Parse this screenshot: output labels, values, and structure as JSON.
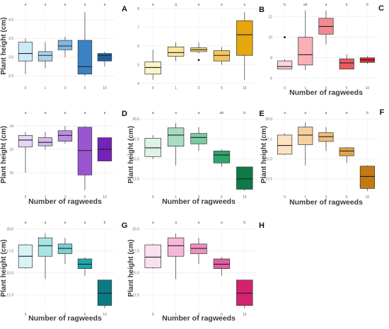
{
  "chart_data": [
    {
      "type": "box",
      "panel_label": "A",
      "xlabel": "",
      "ylabel": "Plant height (cm)",
      "categories": [
        "0",
        "1",
        "3",
        "5",
        "10"
      ],
      "y_ticks": [
        "2.5",
        "3.0",
        "3.5",
        "4.0"
      ],
      "ylim": [
        2.3,
        4.3
      ],
      "significance": [
        "a",
        "a",
        "a",
        "a",
        "a"
      ],
      "boxes": [
        {
          "min": 2.55,
          "q1": 2.9,
          "median": 3.1,
          "q3": 3.4,
          "max": 3.5,
          "color": "#cdeaf7"
        },
        {
          "min": 2.7,
          "q1": 2.9,
          "median": 3.05,
          "q3": 3.15,
          "max": 3.4,
          "color": "#a8d4ee"
        },
        {
          "min": 3.0,
          "q1": 3.2,
          "median": 3.3,
          "q3": 3.45,
          "max": 3.55,
          "color": "#7fb6e0"
        },
        {
          "min": 2.5,
          "q1": 2.55,
          "median": 2.75,
          "q3": 3.45,
          "max": 4.2,
          "color": "#3b82c4"
        },
        {
          "min": 2.75,
          "q1": 2.9,
          "median": 3.05,
          "q3": 3.1,
          "max": 3.15,
          "color": "#1d5f9e"
        }
      ],
      "outliers": []
    },
    {
      "type": "box",
      "panel_label": "B",
      "xlabel": "",
      "ylabel": "",
      "categories": [
        "0",
        "1",
        "3",
        "5",
        "10"
      ],
      "y_ticks": [
        "4",
        "5",
        "6",
        "7",
        "8"
      ],
      "ylim": [
        4.0,
        8.0
      ],
      "significance": [
        "a",
        "a",
        "a",
        "a",
        "a"
      ],
      "boxes": [
        {
          "min": 4.2,
          "q1": 4.5,
          "median": 4.85,
          "q3": 5.15,
          "max": 5.8,
          "color": "#fdf3c6"
        },
        {
          "min": 5.2,
          "q1": 5.45,
          "median": 5.65,
          "q3": 5.95,
          "max": 6.2,
          "color": "#fbe6a0"
        },
        {
          "min": 5.6,
          "q1": 5.7,
          "median": 5.8,
          "q3": 5.9,
          "max": 6.2,
          "color": "#f7d87c"
        },
        {
          "min": 5.0,
          "q1": 5.2,
          "median": 5.5,
          "q3": 5.75,
          "max": 5.95,
          "color": "#f3c55a"
        },
        {
          "min": 4.2,
          "q1": 5.5,
          "median": 6.6,
          "q3": 7.35,
          "max": 7.8,
          "color": "#e5a60f"
        }
      ],
      "outliers": [
        {
          "cat": 2,
          "value": 5.25
        }
      ]
    },
    {
      "type": "box",
      "panel_label": "C",
      "xlabel": "Number of ragweeds",
      "ylabel": "",
      "categories": [
        "0",
        "1",
        "3",
        "5",
        "10"
      ],
      "y_ticks": [
        "6",
        "8",
        "10",
        "12"
      ],
      "ylim": [
        5.5,
        12.8
      ],
      "significance": [
        "b",
        "ab",
        "a",
        "b",
        "b"
      ],
      "boxes": [
        {
          "min": 6.9,
          "q1": 6.9,
          "median": 7.15,
          "q3": 7.7,
          "max": 7.85,
          "color": "#fbd5d8"
        },
        {
          "min": 6.8,
          "q1": 7.3,
          "median": 8.3,
          "q3": 10.0,
          "max": 12.6,
          "color": "#f8b0b6"
        },
        {
          "min": 9.3,
          "q1": 10.3,
          "median": 11.05,
          "q3": 11.85,
          "max": 12.6,
          "color": "#f28a91"
        },
        {
          "min": 6.9,
          "q1": 6.9,
          "median": 7.5,
          "q3": 7.9,
          "max": 8.35,
          "color": "#ea5a62"
        },
        {
          "min": 7.4,
          "q1": 7.55,
          "median": 7.8,
          "q3": 8.0,
          "max": 8.15,
          "color": "#d62f38"
        }
      ],
      "outliers": [
        {
          "cat": 0,
          "value": 10.0
        }
      ]
    },
    {
      "type": "box",
      "panel_label": "D",
      "xlabel": "Number of ragweeds",
      "ylabel": "Plant height (cm)",
      "categories": [
        "0",
        "1",
        "3",
        "5",
        "10"
      ],
      "y_ticks": [
        "10",
        "12",
        "14"
      ],
      "ylim": [
        8.3,
        14.8
      ],
      "significance": [
        "a",
        "a",
        "a",
        "a",
        "a"
      ],
      "boxes": [
        {
          "min": 10.0,
          "q1": 12.2,
          "median": 12.8,
          "q3": 13.2,
          "max": 13.5,
          "color": "#e6d6f5"
        },
        {
          "min": 12.0,
          "q1": 12.3,
          "median": 12.6,
          "q3": 13.0,
          "max": 13.5,
          "color": "#d2b9ef"
        },
        {
          "min": 12.5,
          "q1": 12.7,
          "median": 13.2,
          "q3": 13.6,
          "max": 14.0,
          "color": "#b98fe4"
        },
        {
          "min": 8.5,
          "q1": 9.8,
          "median": 11.9,
          "q3": 13.9,
          "max": 14.0,
          "color": "#9a55d0"
        },
        {
          "min": 11.0,
          "q1": 11.0,
          "median": 12.0,
          "q3": 13.0,
          "max": 13.0,
          "color": "#7422b8"
        }
      ],
      "outliers": []
    },
    {
      "type": "box",
      "panel_label": "E",
      "xlabel": "Number of ragweeds",
      "ylabel": "Plant height (cm)",
      "categories": [
        "0",
        "1",
        "3",
        "5",
        "10"
      ],
      "y_ticks": [
        "12.5",
        "15.0",
        "17.5",
        "20.0"
      ],
      "ylim": [
        10.8,
        20.3
      ],
      "significance": [
        "a",
        "a",
        "a",
        "ab",
        "b"
      ],
      "boxes": [
        {
          "min": 15.0,
          "q1": 15.3,
          "median": 16.4,
          "q3": 17.6,
          "max": 18.0,
          "color": "#dff2e6"
        },
        {
          "min": 14.2,
          "q1": 16.6,
          "median": 18.0,
          "q3": 18.9,
          "max": 19.5,
          "color": "#a8dcc0"
        },
        {
          "min": 16.0,
          "q1": 16.9,
          "median": 17.7,
          "q3": 18.2,
          "max": 19.0,
          "color": "#7ccba0"
        },
        {
          "min": 14.0,
          "q1": 14.5,
          "median": 15.5,
          "q3": 16.0,
          "max": 16.2,
          "color": "#2ea56c"
        },
        {
          "min": 11.0,
          "q1": 11.2,
          "median": 12.5,
          "q3": 14.0,
          "max": 14.0,
          "color": "#0e7a48"
        }
      ],
      "outliers": []
    },
    {
      "type": "box",
      "panel_label": "F",
      "xlabel": "Number of ragweeds",
      "ylabel": "Plant height (cm)",
      "categories": [
        "0",
        "1",
        "3",
        "5",
        "10"
      ],
      "y_ticks": [
        "12.5",
        "15.0",
        "17.5",
        "20.0"
      ],
      "ylim": [
        10.8,
        20.3
      ],
      "significance": [
        "a",
        "a",
        "a",
        "a",
        "b"
      ],
      "boxes": [
        {
          "min": 15.5,
          "q1": 15.6,
          "median": 16.7,
          "q3": 18.0,
          "max": 18.2,
          "color": "#fbe3c2"
        },
        {
          "min": 14.2,
          "q1": 16.8,
          "median": 18.0,
          "q3": 19.0,
          "max": 19.6,
          "color": "#f6d09c"
        },
        {
          "min": 16.0,
          "q1": 17.2,
          "median": 17.8,
          "q3": 18.3,
          "max": 19.0,
          "color": "#efbd7a"
        },
        {
          "min": 14.5,
          "q1": 15.4,
          "median": 16.0,
          "q3": 16.4,
          "max": 16.5,
          "color": "#e2a44a"
        },
        {
          "min": 11.0,
          "q1": 11.3,
          "median": 12.8,
          "q3": 14.1,
          "max": 14.2,
          "color": "#c27a14"
        }
      ],
      "outliers": []
    },
    {
      "type": "box",
      "panel_label": "G",
      "xlabel": "Number of ragweeds",
      "ylabel": "Plant height (cm)",
      "categories": [
        "0",
        "1",
        "3",
        "5",
        "10"
      ],
      "y_ticks": [
        "12.5",
        "15.0",
        "17.5",
        "20.0"
      ],
      "ylim": [
        10.8,
        20.3
      ],
      "significance": [
        "a",
        "a",
        "a",
        "a",
        "b"
      ],
      "boxes": [
        {
          "min": 15.5,
          "q1": 15.6,
          "median": 16.9,
          "q3": 18.2,
          "max": 18.3,
          "color": "#d9f3f5"
        },
        {
          "min": 14.3,
          "q1": 16.9,
          "median": 18.1,
          "q3": 19.0,
          "max": 19.5,
          "color": "#a9e3e6"
        },
        {
          "min": 16.0,
          "q1": 17.2,
          "median": 17.8,
          "q3": 18.3,
          "max": 19.0,
          "color": "#79cfd3"
        },
        {
          "min": 14.7,
          "q1": 15.5,
          "median": 16.0,
          "q3": 16.6,
          "max": 16.8,
          "color": "#1fa5ad"
        },
        {
          "min": 11.0,
          "q1": 11.3,
          "median": 12.7,
          "q3": 14.2,
          "max": 14.2,
          "color": "#0b7a82"
        }
      ],
      "outliers": []
    },
    {
      "type": "box",
      "panel_label": "H",
      "xlabel": "Number of ragweeds",
      "ylabel": "Plant height (cm)",
      "categories": [
        "0",
        "1",
        "3",
        "5",
        "10"
      ],
      "y_ticks": [
        "12.5",
        "15.0",
        "17.5",
        "20.0"
      ],
      "ylim": [
        10.8,
        20.3
      ],
      "significance": [
        "a",
        "a",
        "a",
        "a",
        "b"
      ],
      "boxes": [
        {
          "min": 15.5,
          "q1": 15.6,
          "median": 16.8,
          "q3": 18.2,
          "max": 18.3,
          "color": "#fbe1ef"
        },
        {
          "min": 14.3,
          "q1": 16.9,
          "median": 18.1,
          "q3": 19.0,
          "max": 19.5,
          "color": "#f5b8d8"
        },
        {
          "min": 16.0,
          "q1": 17.2,
          "median": 17.8,
          "q3": 18.3,
          "max": 19.0,
          "color": "#ee8fc0"
        },
        {
          "min": 14.7,
          "q1": 15.5,
          "median": 16.0,
          "q3": 16.6,
          "max": 16.8,
          "color": "#e05fa1"
        },
        {
          "min": 11.0,
          "q1": 11.3,
          "median": 12.7,
          "q3": 14.2,
          "max": 14.2,
          "color": "#d4226f"
        }
      ],
      "outliers": []
    }
  ]
}
